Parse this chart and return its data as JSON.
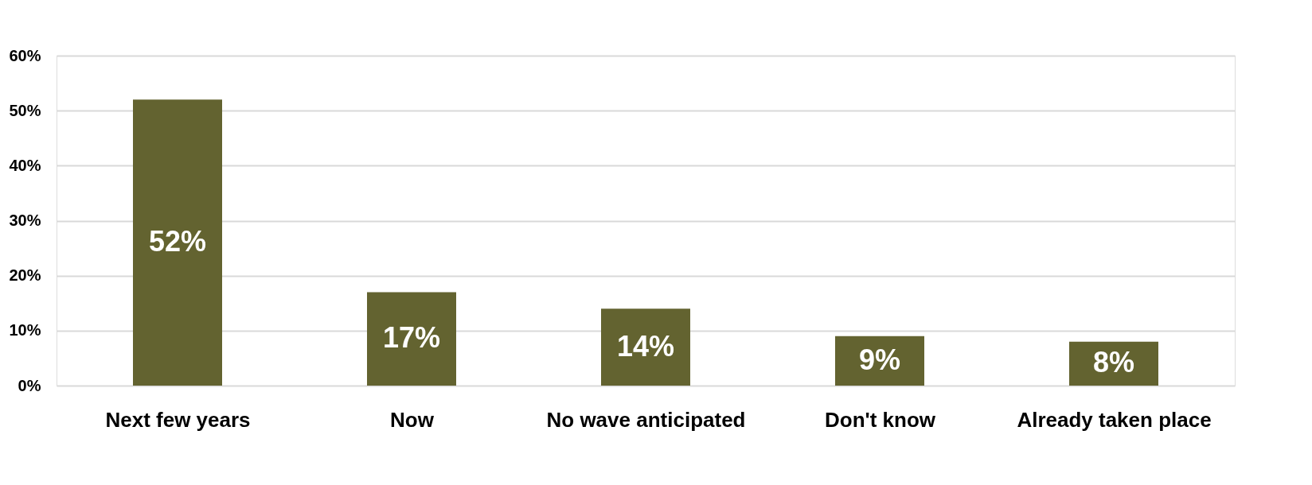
{
  "chart_data": {
    "type": "bar",
    "categories": [
      "Next few years",
      "Now",
      "No wave anticipated",
      "Don't know",
      "Already taken place"
    ],
    "values": [
      52,
      17,
      14,
      9,
      8
    ],
    "value_labels": [
      "52%",
      "17%",
      "14%",
      "9%",
      "8%"
    ],
    "color": "#636330",
    "ylim": [
      0,
      60
    ],
    "yticks": [
      {
        "value": 0,
        "label": "0%"
      },
      {
        "value": 10,
        "label": "10%"
      },
      {
        "value": 20,
        "label": "20%"
      },
      {
        "value": 30,
        "label": "30%"
      },
      {
        "value": 40,
        "label": "40%"
      },
      {
        "value": 50,
        "label": "50%"
      },
      {
        "value": 60,
        "label": "60%"
      }
    ],
    "grid": "y"
  }
}
